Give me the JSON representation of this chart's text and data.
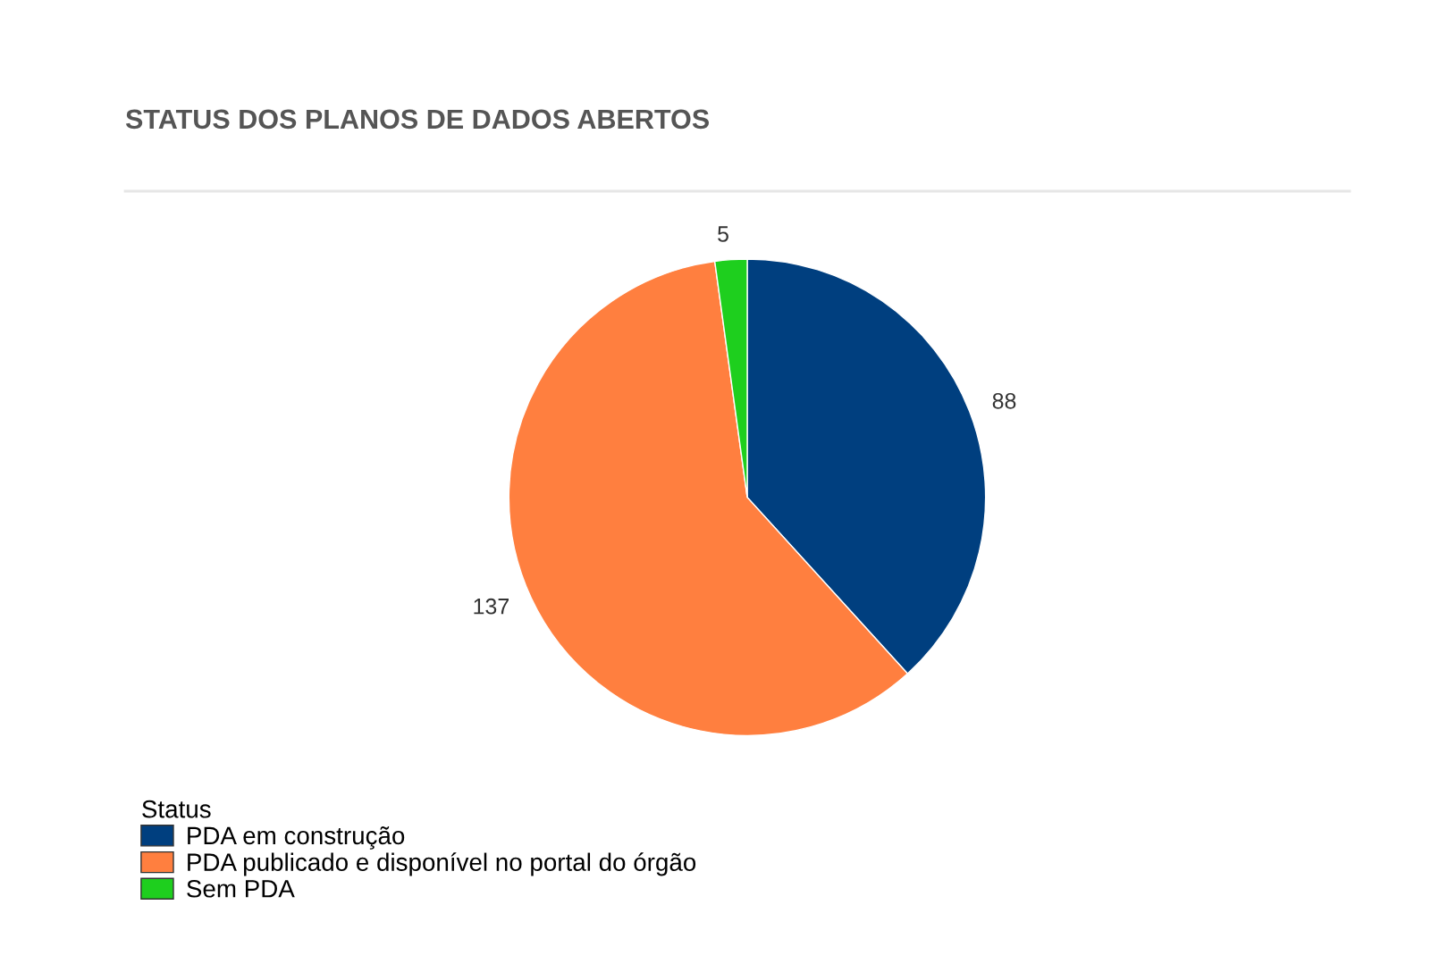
{
  "chart_data": {
    "type": "pie",
    "title": "STATUS DOS PLANOS DE DADOS ABERTOS",
    "legend_title": "Status",
    "categories": [
      "PDA em construção",
      "PDA publicado e disponível no portal do órgão",
      "Sem PDA"
    ],
    "values": [
      88,
      137,
      5
    ],
    "colors": [
      "#003f7f",
      "#ff7f3f",
      "#1ecf1e"
    ],
    "data_labels": true,
    "legend": "bottom left"
  }
}
